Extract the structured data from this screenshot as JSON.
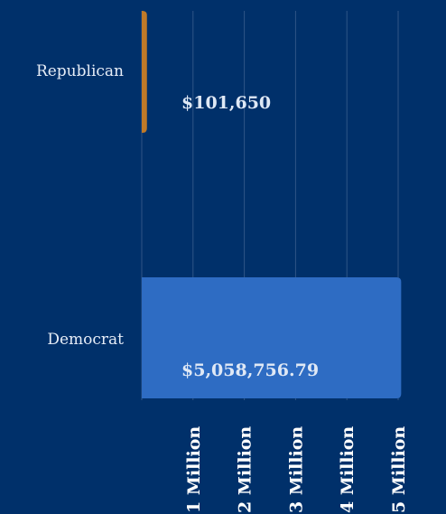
{
  "chart_data": {
    "type": "bar",
    "orientation": "horizontal",
    "categories": [
      "Republican",
      "Democrat"
    ],
    "values": [
      101650,
      5058756.79
    ],
    "value_labels": [
      "$101,650",
      "$5,058,756.79"
    ],
    "colors": [
      "#c07a28",
      "#2e6cc3"
    ],
    "xlim": [
      0,
      5000000
    ],
    "x_ticks": [
      1000000,
      2000000,
      3000000,
      4000000,
      5000000
    ],
    "x_tick_labels": [
      "1 Million",
      "2 Million",
      "3 Million",
      "4 Million",
      "5 Million"
    ],
    "grid": true,
    "legend": "none"
  }
}
